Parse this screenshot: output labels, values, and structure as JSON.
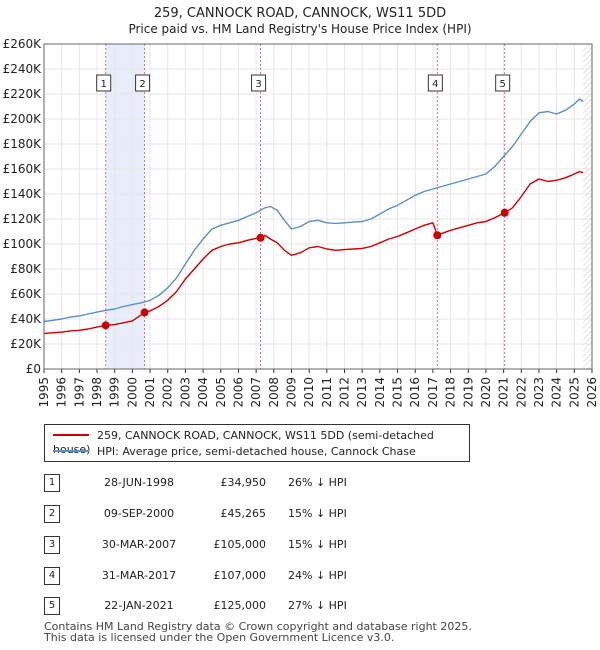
{
  "chart_data": {
    "type": "line",
    "title": "259, CANNOCK ROAD, CANNOCK, WS11 5DD",
    "subtitle": "Price paid vs. HM Land Registry's House Price Index (HPI)",
    "xlabel": "",
    "ylabel": "",
    "xlim": [
      1995,
      2026
    ],
    "ylim": [
      0,
      260000
    ],
    "x_ticks": [
      "1995",
      "1996",
      "1997",
      "1998",
      "1999",
      "2000",
      "2001",
      "2002",
      "2003",
      "2004",
      "2005",
      "2006",
      "2007",
      "2008",
      "2009",
      "2010",
      "2011",
      "2012",
      "2013",
      "2014",
      "2015",
      "2016",
      "2017",
      "2018",
      "2019",
      "2020",
      "2021",
      "2022",
      "2023",
      "2024",
      "2025",
      "2026"
    ],
    "y_ticks": [
      {
        "value": 0,
        "label": "£0"
      },
      {
        "value": 20000,
        "label": "£20K"
      },
      {
        "value": 40000,
        "label": "£40K"
      },
      {
        "value": 60000,
        "label": "£60K"
      },
      {
        "value": 80000,
        "label": "£80K"
      },
      {
        "value": 100000,
        "label": "£100K"
      },
      {
        "value": 120000,
        "label": "£120K"
      },
      {
        "value": 140000,
        "label": "£140K"
      },
      {
        "value": 160000,
        "label": "£160K"
      },
      {
        "value": 180000,
        "label": "£180K"
      },
      {
        "value": 200000,
        "label": "£200K"
      },
      {
        "value": 220000,
        "label": "£220K"
      },
      {
        "value": 240000,
        "label": "£240K"
      },
      {
        "value": 260000,
        "label": "£260K"
      }
    ],
    "grid": true,
    "series": [
      {
        "name": "259, CANNOCK ROAD, CANNOCK, WS11 5DD (semi-detached house)",
        "color": "#cc0000",
        "points": [
          [
            1995.0,
            28500
          ],
          [
            1995.5,
            29000
          ],
          [
            1996.0,
            29500
          ],
          [
            1996.5,
            30500
          ],
          [
            1997.0,
            31000
          ],
          [
            1997.5,
            32000
          ],
          [
            1998.0,
            33500
          ],
          [
            1998.49,
            34950
          ],
          [
            1999.0,
            35500
          ],
          [
            1999.5,
            37000
          ],
          [
            2000.0,
            38500
          ],
          [
            2000.69,
            45265
          ],
          [
            2001.0,
            46500
          ],
          [
            2001.5,
            50000
          ],
          [
            2002.0,
            55000
          ],
          [
            2002.5,
            62000
          ],
          [
            2003.0,
            72000
          ],
          [
            2003.5,
            80000
          ],
          [
            2004.0,
            88000
          ],
          [
            2004.5,
            95000
          ],
          [
            2005.0,
            98000
          ],
          [
            2005.5,
            100000
          ],
          [
            2006.0,
            101000
          ],
          [
            2006.5,
            103000
          ],
          [
            2007.0,
            104500
          ],
          [
            2007.25,
            105000
          ],
          [
            2007.5,
            107000
          ],
          [
            2007.8,
            104000
          ],
          [
            2008.2,
            101000
          ],
          [
            2008.6,
            95000
          ],
          [
            2009.0,
            91000
          ],
          [
            2009.5,
            93000
          ],
          [
            2010.0,
            97000
          ],
          [
            2010.5,
            98000
          ],
          [
            2011.0,
            96000
          ],
          [
            2011.5,
            95000
          ],
          [
            2012.0,
            95500
          ],
          [
            2012.5,
            96000
          ],
          [
            2013.0,
            96500
          ],
          [
            2013.5,
            98000
          ],
          [
            2014.0,
            101000
          ],
          [
            2014.5,
            104000
          ],
          [
            2015.0,
            106000
          ],
          [
            2015.5,
            109000
          ],
          [
            2016.0,
            112000
          ],
          [
            2016.5,
            115000
          ],
          [
            2017.0,
            117000
          ],
          [
            2017.25,
            107000
          ],
          [
            2017.6,
            109000
          ],
          [
            2018.0,
            111000
          ],
          [
            2018.5,
            113000
          ],
          [
            2019.0,
            115000
          ],
          [
            2019.5,
            117000
          ],
          [
            2020.0,
            118000
          ],
          [
            2020.5,
            121000
          ],
          [
            2021.06,
            125000
          ],
          [
            2021.5,
            129000
          ],
          [
            2022.0,
            138000
          ],
          [
            2022.5,
            148000
          ],
          [
            2023.0,
            152000
          ],
          [
            2023.5,
            150000
          ],
          [
            2024.0,
            151000
          ],
          [
            2024.5,
            153000
          ],
          [
            2025.0,
            156000
          ],
          [
            2025.3,
            158000
          ],
          [
            2025.5,
            157000
          ]
        ]
      },
      {
        "name": "HPI: Average price, semi-detached house, Cannock Chase",
        "color": "#5b8fc9",
        "points": [
          [
            1995.0,
            38000
          ],
          [
            1995.5,
            39000
          ],
          [
            1996.0,
            40000
          ],
          [
            1996.5,
            41500
          ],
          [
            1997.0,
            42500
          ],
          [
            1997.5,
            44000
          ],
          [
            1998.0,
            45500
          ],
          [
            1998.5,
            47000
          ],
          [
            1999.0,
            48000
          ],
          [
            1999.5,
            50000
          ],
          [
            2000.0,
            51500
          ],
          [
            2000.5,
            53000
          ],
          [
            2001.0,
            55000
          ],
          [
            2001.5,
            59000
          ],
          [
            2002.0,
            65000
          ],
          [
            2002.5,
            73000
          ],
          [
            2003.0,
            84000
          ],
          [
            2003.5,
            95000
          ],
          [
            2004.0,
            104000
          ],
          [
            2004.5,
            112000
          ],
          [
            2005.0,
            115000
          ],
          [
            2005.5,
            117000
          ],
          [
            2006.0,
            119000
          ],
          [
            2006.5,
            122000
          ],
          [
            2007.0,
            125000
          ],
          [
            2007.5,
            129000
          ],
          [
            2007.8,
            130000
          ],
          [
            2008.2,
            127000
          ],
          [
            2008.6,
            119000
          ],
          [
            2009.0,
            112000
          ],
          [
            2009.5,
            114000
          ],
          [
            2010.0,
            118000
          ],
          [
            2010.5,
            119000
          ],
          [
            2011.0,
            117000
          ],
          [
            2011.5,
            116500
          ],
          [
            2012.0,
            117000
          ],
          [
            2012.5,
            117500
          ],
          [
            2013.0,
            118000
          ],
          [
            2013.5,
            120000
          ],
          [
            2014.0,
            124000
          ],
          [
            2014.5,
            128000
          ],
          [
            2015.0,
            131000
          ],
          [
            2015.5,
            135000
          ],
          [
            2016.0,
            139000
          ],
          [
            2016.5,
            142000
          ],
          [
            2017.0,
            144000
          ],
          [
            2017.5,
            146000
          ],
          [
            2018.0,
            148000
          ],
          [
            2018.5,
            150000
          ],
          [
            2019.0,
            152000
          ],
          [
            2019.5,
            154000
          ],
          [
            2020.0,
            156000
          ],
          [
            2020.5,
            162000
          ],
          [
            2021.0,
            170000
          ],
          [
            2021.5,
            178000
          ],
          [
            2022.0,
            188000
          ],
          [
            2022.5,
            198000
          ],
          [
            2023.0,
            205000
          ],
          [
            2023.5,
            206000
          ],
          [
            2024.0,
            204000
          ],
          [
            2024.5,
            207000
          ],
          [
            2025.0,
            212000
          ],
          [
            2025.3,
            216000
          ],
          [
            2025.5,
            214000
          ]
        ]
      }
    ],
    "sales": [
      {
        "num": "1",
        "x": 1998.49,
        "value": 34950,
        "date": "28-JUN-1998",
        "price": "£34,950",
        "hpi": "26% ↓ HPI"
      },
      {
        "num": "2",
        "x": 2000.69,
        "value": 45265,
        "date": "09-SEP-2000",
        "price": "£45,265",
        "hpi": "15% ↓ HPI"
      },
      {
        "num": "3",
        "x": 2007.25,
        "value": 105000,
        "date": "30-MAR-2007",
        "price": "£105,000",
        "hpi": "15% ↓ HPI"
      },
      {
        "num": "4",
        "x": 2017.25,
        "value": 107000,
        "date": "31-MAR-2017",
        "price": "£107,000",
        "hpi": "24% ↓ HPI"
      },
      {
        "num": "5",
        "x": 2021.06,
        "value": 125000,
        "date": "22-JAN-2021",
        "price": "£125,000",
        "hpi": "27% ↓ HPI"
      }
    ],
    "shaded_spans": [
      [
        1998.49,
        2000.69
      ]
    ],
    "future_from": 2025.5
  },
  "legend": {
    "property_label": "259, CANNOCK ROAD, CANNOCK, WS11 5DD (semi-detached house)",
    "hpi_label": "HPI: Average price, semi-detached house, Cannock Chase",
    "property_color": "#cc0000",
    "hpi_color": "#5b8fc9"
  },
  "footer": {
    "line1": "Contains HM Land Registry data © Crown copyright and database right 2025.",
    "line2": "This data is licensed under the Open Government Licence v3.0."
  }
}
